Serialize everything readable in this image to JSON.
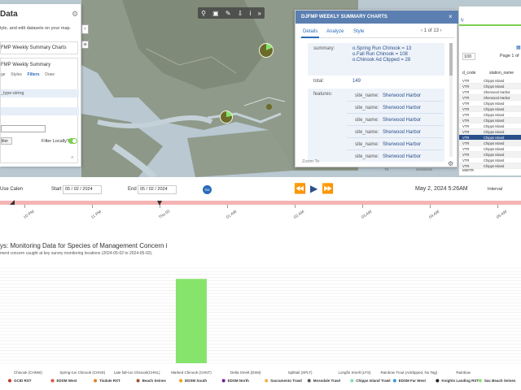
{
  "left_panel": {
    "title": "Data",
    "description": "tyle, and edit datasets on your map.",
    "layer_name": "FMP Weekly Summary Charts",
    "layer_name_2": "FMP Weekly Summary",
    "tabs": [
      "ge",
      "Styles",
      "Filters",
      "Draw"
    ],
    "filter_field": "_type:string",
    "filter_button": "ilter",
    "filter_locally": "Filter Locally?"
  },
  "popup": {
    "title": "DJFMP WEEKLY SUMMARY CHARTS",
    "tabs": [
      "Details",
      "Analyze",
      "Style"
    ],
    "pager": "‹ 1 of 13 ›",
    "summary_label": "summary:",
    "summary_lines": [
      "o.Spring Run Chinook = 13",
      "o.Fall Run Chinook = 108",
      "o.Chinook Ad Clipped = 28"
    ],
    "total_label": "total:",
    "total_value": "149",
    "features_label": "features:",
    "site_label": "site_name:",
    "site_values": [
      "Sherwood Harbor",
      "Sherwood Harbor",
      "Sherwood Harbor",
      "Sherwood Harbor",
      "Sherwood Harbor",
      "Sherwood Harbor"
    ],
    "zoom_to": "Zoom To"
  },
  "right_table": {
    "tab_label": "ly",
    "page_select": "100",
    "page_info": "Page 1 of",
    "col1": "d_code",
    "col2": "station_name",
    "rows": [
      [
        "VTR",
        "Chipps Island"
      ],
      [
        "VTR",
        "Chipps Island"
      ],
      [
        "VTR",
        "Sherwood Harbor"
      ],
      [
        "VTR",
        "Sherwood Harbor"
      ],
      [
        "VTR",
        "Chipps Island"
      ],
      [
        "VTR",
        "Chipps Island"
      ],
      [
        "VTR",
        "Chipps Island"
      ],
      [
        "VTR",
        "Chipps Island"
      ],
      [
        "VTR",
        "Chipps Island"
      ],
      [
        "VTR",
        "Chipps Island"
      ],
      [
        "VTR",
        "Chipps Island"
      ],
      [
        "VTR",
        "Chipps Island"
      ],
      [
        "VTR",
        "Chipps Island"
      ],
      [
        "VTR",
        "Chipps Island"
      ],
      [
        "VTR",
        "Chipps Island"
      ],
      [
        "VTR",
        "Chipps Island"
      ]
    ],
    "footer_left": "TR",
    "footer_mid": "2024/05/02",
    "footer_right": "MWTR"
  },
  "timebar": {
    "use_calendar": "Use Calen",
    "start_label": "Start",
    "start_value": "05 / 02 / 2024",
    "end_label": "End",
    "end_value": "05 / 02 / 2024",
    "go": "Go",
    "current_time": "May 2, 2024 5:26AM",
    "interval": "Interval",
    "tick_labels": [
      "10 PM",
      "11 PM",
      "Thu 02",
      "01 AM",
      "02 AM",
      "03 AM",
      "04 AM",
      "05 AM"
    ]
  },
  "chart_data": {
    "type": "bar",
    "title": "ys: Monitoring Data for Species of Management Concern",
    "subtitle": "ment concern caught at key survey monitoring locations (2024-05-02 to 2024-05-02).",
    "categories": [
      "Chinook (CHNW)",
      "Spring-run Chinook (CHNS)",
      "Late fall-run Chinook(CHNL)",
      "Marked Chinook (CHNT)",
      "Delta Smelt (DSM)",
      "Splittail (SPLT)",
      "Longfin Smelt (LFS)",
      "Rainbow Trout (Adclipped, No Tag)",
      "Rainbow"
    ],
    "values": [
      0,
      0,
      0,
      28,
      0,
      0,
      0,
      0,
      0
    ],
    "bar_color": "#86e36b",
    "ylim": [
      0,
      30
    ],
    "legend": [
      {
        "label": "GCID RST",
        "color": "#c0392b"
      },
      {
        "label": "EDSM West",
        "color": "#e74c3c"
      },
      {
        "label": "Tisdale RST",
        "color": "#e67e22"
      },
      {
        "label": "Beach Seines",
        "color": "#a0522d"
      },
      {
        "label": "EDSM South",
        "color": "#f39c12"
      },
      {
        "label": "EDSM North",
        "color": "#6a1b9a"
      },
      {
        "label": "Sacramento Trawl",
        "color": "#f5b041"
      },
      {
        "label": "Mossdale Trawl",
        "color": "#555555"
      },
      {
        "label": "Chipps Island Trawl",
        "color": "#82e0aa"
      },
      {
        "label": "EDSM Far West",
        "color": "#3498db"
      },
      {
        "label": "Knights Landing RST",
        "color": "#222222"
      },
      {
        "label": "Sac Beach Seines",
        "color": "#86e36b"
      }
    ]
  }
}
